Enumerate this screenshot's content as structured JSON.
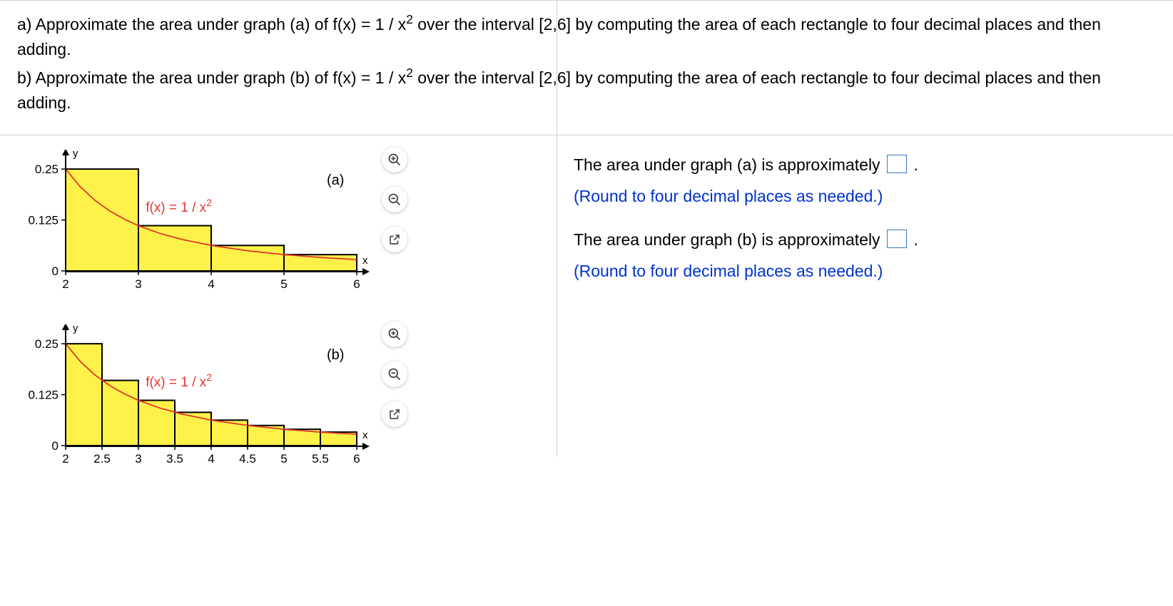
{
  "problem": {
    "part_a_prefix": "a) Approximate the area under graph (a) of ",
    "part_a_suffix": " over the interval [2,6] by computing the area of each rectangle to four decimal places and then adding.",
    "part_b_prefix": "b) Approximate the area under graph (b) of ",
    "part_b_suffix": " over the interval [2,6] by computing the area of each rectangle to four decimal places and then adding.",
    "fx_base": "f(x) = 1 / x",
    "fx_exp": "2"
  },
  "answers": {
    "a_text": "The area under graph (a) is approximately ",
    "a_hint": "(Round to four decimal places as needed.)",
    "b_text": "The area under graph (b) is approximately ",
    "b_hint": "(Round to four decimal places as needed.)"
  },
  "chart_common": {
    "axis_color": "#000000",
    "curve_color": "#e2362c",
    "bar_fill": "#fef24a",
    "bar_stroke": "#000000",
    "func_label_base": "f(x) = 1 / x",
    "func_label_exp": "2",
    "func_label_color": "#e2362c",
    "y_axis_label": "y",
    "x_axis_label": "x",
    "tick_fontsize": 17
  },
  "chart_a": {
    "label": "(a)",
    "xlim": [
      2,
      6
    ],
    "ylim": [
      0,
      0.28
    ],
    "y_ticks": [
      0,
      0.125,
      0.25
    ],
    "x_ticks": [
      2,
      3,
      4,
      5,
      6
    ],
    "bar_width": 1,
    "bars": [
      {
        "x": 2,
        "h": 0.25
      },
      {
        "x": 3,
        "h": 0.1111
      },
      {
        "x": 4,
        "h": 0.0625
      },
      {
        "x": 5,
        "h": 0.04
      }
    ],
    "curve_points": [
      [
        2,
        0.25
      ],
      [
        2.2,
        0.2066
      ],
      [
        2.4,
        0.1736
      ],
      [
        2.6,
        0.1479
      ],
      [
        2.8,
        0.1276
      ],
      [
        3,
        0.1111
      ],
      [
        3.3,
        0.0918
      ],
      [
        3.6,
        0.0772
      ],
      [
        4,
        0.0625
      ],
      [
        4.5,
        0.0494
      ],
      [
        5,
        0.04
      ],
      [
        5.5,
        0.0331
      ],
      [
        6,
        0.0278
      ]
    ]
  },
  "chart_b": {
    "label": "(b)",
    "xlim": [
      2,
      6
    ],
    "ylim": [
      0,
      0.28
    ],
    "y_ticks": [
      0,
      0.125,
      0.25
    ],
    "x_ticks": [
      2,
      2.5,
      3,
      3.5,
      4,
      4.5,
      5,
      5.5,
      6
    ],
    "bar_width": 0.5,
    "bars": [
      {
        "x": 2,
        "h": 0.25
      },
      {
        "x": 2.5,
        "h": 0.16
      },
      {
        "x": 3,
        "h": 0.1111
      },
      {
        "x": 3.5,
        "h": 0.0816
      },
      {
        "x": 4,
        "h": 0.0625
      },
      {
        "x": 4.5,
        "h": 0.0494
      },
      {
        "x": 5,
        "h": 0.04
      },
      {
        "x": 5.5,
        "h": 0.0331
      }
    ],
    "curve_points": [
      [
        2,
        0.25
      ],
      [
        2.2,
        0.2066
      ],
      [
        2.4,
        0.1736
      ],
      [
        2.6,
        0.1479
      ],
      [
        2.8,
        0.1276
      ],
      [
        3,
        0.1111
      ],
      [
        3.3,
        0.0918
      ],
      [
        3.6,
        0.0772
      ],
      [
        4,
        0.0625
      ],
      [
        4.5,
        0.0494
      ],
      [
        5,
        0.04
      ],
      [
        5.5,
        0.0331
      ],
      [
        6,
        0.0278
      ]
    ]
  }
}
